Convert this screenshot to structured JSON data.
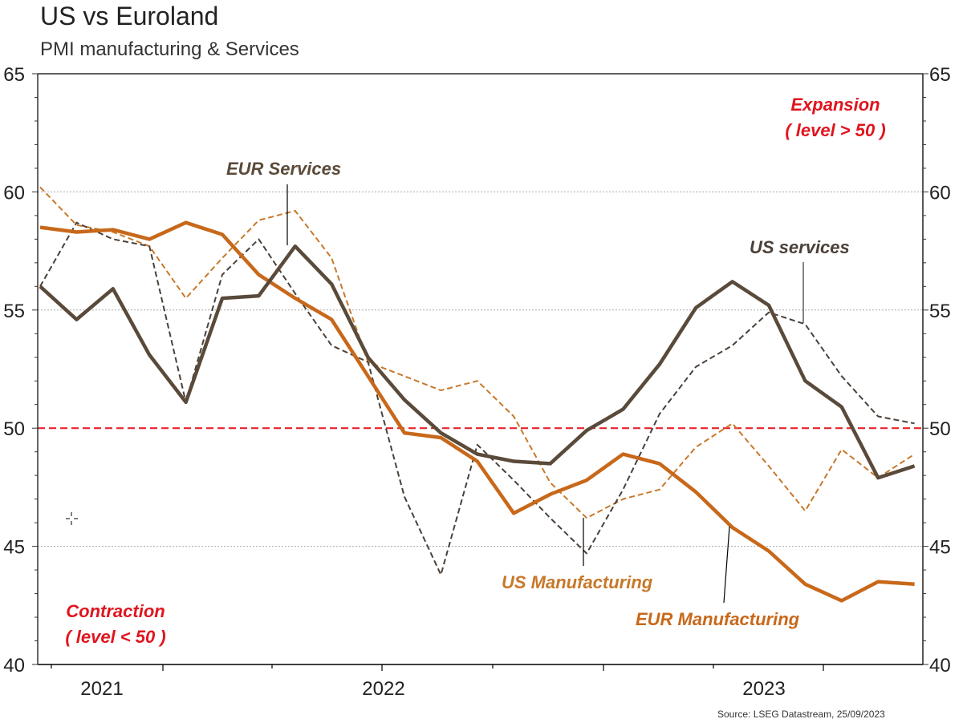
{
  "header": {
    "title": "US vs Euroland",
    "subtitle": "PMI manufacturing & Services"
  },
  "source": "Source: LSEG Datastream, 25/09/2023",
  "colors": {
    "eur_services": "#5a4a3a",
    "us_services": "#4a4038",
    "eur_manufacturing": "#c8681a",
    "us_manufacturing": "#c8782a",
    "threshold": "#e8242c",
    "annotation_red": "#e0151f",
    "grid": "#aaaaaa"
  },
  "chart_data": {
    "type": "line",
    "title": "US vs Euroland",
    "subtitle": "PMI manufacturing & Services",
    "xlabel": "",
    "ylabel": "",
    "ylim": [
      40,
      65
    ],
    "y_ticks": [
      40,
      45,
      50,
      55,
      60,
      65
    ],
    "y_ticks_right": [
      40,
      45,
      50,
      55,
      60,
      65
    ],
    "x_tick_labels": [
      "2021",
      "2022",
      "2023"
    ],
    "grid": "horizontal dotted at major y ticks",
    "threshold_line": {
      "value": 50,
      "style": "red dashed"
    },
    "x": [
      "M1",
      "M2",
      "M3",
      "M4",
      "M5",
      "M6",
      "M7",
      "M8",
      "M9",
      "M10",
      "M11",
      "M12",
      "M13",
      "M14",
      "M15",
      "M16",
      "M17",
      "M18",
      "M19",
      "M20",
      "M21",
      "M22",
      "M23",
      "M24",
      "M25"
    ],
    "series": [
      {
        "name": "EUR Services",
        "style": "thick solid dark",
        "values": [
          56.0,
          54.6,
          55.9,
          53.1,
          51.1,
          55.5,
          55.6,
          57.7,
          56.1,
          53.0,
          51.2,
          49.8,
          48.9,
          48.6,
          48.5,
          49.9,
          50.8,
          52.7,
          55.1,
          56.2,
          55.2,
          52.0,
          50.9,
          47.9,
          48.4
        ]
      },
      {
        "name": "US services",
        "style": "thin dashed dark",
        "values": [
          56.0,
          58.7,
          58.0,
          57.7,
          51.1,
          56.5,
          58.0,
          55.7,
          53.5,
          52.8,
          47.1,
          43.8,
          49.3,
          47.8,
          46.2,
          44.7,
          47.4,
          50.6,
          52.6,
          53.5,
          54.9,
          54.4,
          52.2,
          50.5,
          50.2
        ]
      },
      {
        "name": "EUR Manufacturing",
        "style": "thick solid orange",
        "values": [
          58.5,
          58.3,
          58.4,
          58.0,
          58.7,
          58.2,
          56.5,
          55.5,
          54.6,
          52.2,
          49.8,
          49.6,
          48.6,
          46.4,
          47.2,
          47.8,
          48.9,
          48.5,
          47.3,
          45.8,
          44.8,
          43.4,
          42.7,
          43.5,
          43.4
        ]
      },
      {
        "name": "US Manufacturing",
        "style": "thin dashed orange",
        "values": [
          60.2,
          58.6,
          58.3,
          57.7,
          55.5,
          57.2,
          58.8,
          59.2,
          57.2,
          52.8,
          52.2,
          51.6,
          52.0,
          50.5,
          47.7,
          46.2,
          47.0,
          47.4,
          49.2,
          50.2,
          48.4,
          46.5,
          49.1,
          47.9,
          48.9
        ]
      }
    ],
    "annotations": [
      {
        "text": "EUR Services",
        "color": "eur_services",
        "points_to": "EUR Services"
      },
      {
        "text": "US services",
        "color": "us_services",
        "points_to": "US services"
      },
      {
        "text": "US Manufacturing",
        "color": "us_manufacturing",
        "points_to": "US Manufacturing"
      },
      {
        "text": "EUR Manufacturing",
        "color": "eur_manufacturing",
        "points_to": "EUR Manufacturing"
      },
      {
        "text": "Expansion",
        "line2": "( level > 50 )",
        "color": "annotation_red"
      },
      {
        "text": "Contraction",
        "line2": "( level < 50 )",
        "color": "annotation_red"
      }
    ]
  }
}
